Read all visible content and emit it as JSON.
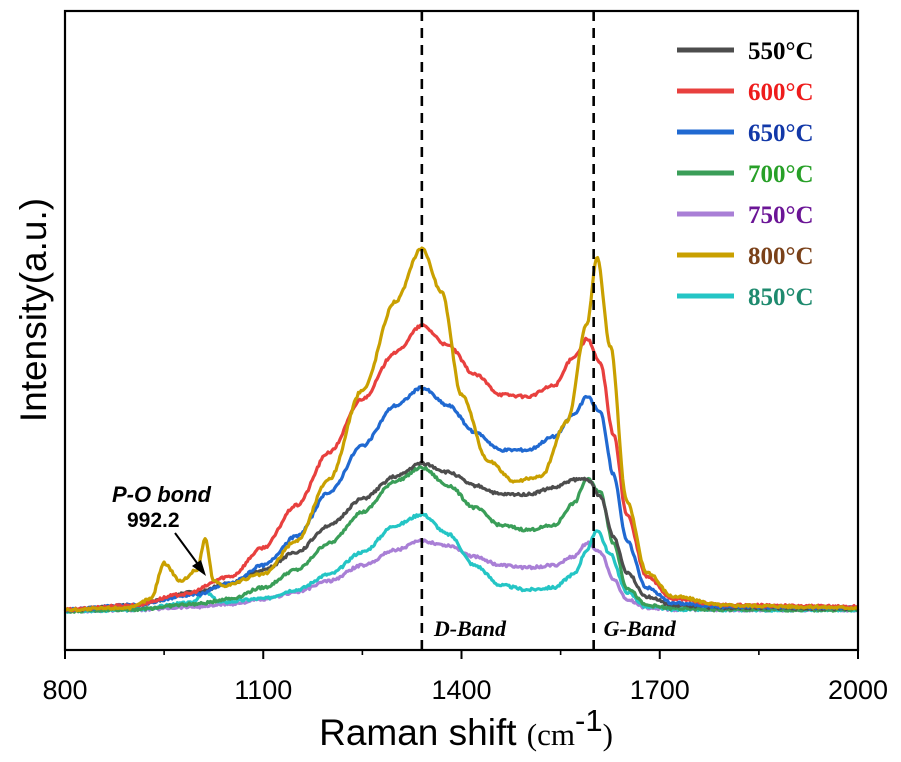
{
  "chart_data": {
    "type": "line",
    "xlabel": "Raman shift",
    "xlabel_unit": "(cm",
    "xlabel_unit_exp": "-1",
    "xlabel_unit_close": ")",
    "ylabel": "Intensity(a.u.)",
    "xlim": [
      800,
      2000
    ],
    "ylim": [
      0,
      10
    ],
    "x_ticks": [
      800,
      1100,
      1400,
      1700,
      2000
    ],
    "x_tick_labels": [
      "800",
      "1100",
      "1400",
      "1700",
      "2000"
    ],
    "grid": false,
    "legend_position": "top-right",
    "reference_lines": [
      {
        "x": 1340,
        "label": "D-Band"
      },
      {
        "x": 1600,
        "label": "G-Band"
      }
    ],
    "annotation": {
      "label": "P-O bond",
      "value": "992.2",
      "x": 1010,
      "y": 0.6
    },
    "series": [
      {
        "name": "550°C",
        "color": "#4d4d4d",
        "label_color": "#000000",
        "x": [
          800,
          900,
          1000,
          1050,
          1100,
          1150,
          1200,
          1250,
          1300,
          1340,
          1380,
          1420,
          1460,
          1500,
          1540,
          1570,
          1590,
          1610,
          1630,
          1650,
          1680,
          1720,
          1800,
          2000
        ],
        "y": [
          0.05,
          0.15,
          0.45,
          0.65,
          0.95,
          1.35,
          1.95,
          2.55,
          3.05,
          3.35,
          3.15,
          2.85,
          2.65,
          2.65,
          2.8,
          2.98,
          3.0,
          2.6,
          1.7,
          0.9,
          0.35,
          0.15,
          0.1,
          0.08
        ]
      },
      {
        "name": "600°C",
        "color": "#e8403e",
        "label_color": "#ee1c1c",
        "x": [
          800,
          900,
          980,
          1050,
          1100,
          1150,
          1200,
          1250,
          1300,
          1340,
          1380,
          1420,
          1460,
          1500,
          1540,
          1570,
          1590,
          1610,
          1630,
          1650,
          1680,
          1720,
          1800,
          2000
        ],
        "y": [
          0.05,
          0.15,
          0.4,
          0.8,
          1.45,
          2.4,
          3.6,
          4.8,
          5.85,
          6.45,
          6.0,
          5.35,
          4.9,
          4.85,
          5.1,
          5.75,
          6.15,
          5.6,
          4.0,
          2.2,
          0.8,
          0.3,
          0.15,
          0.12
        ]
      },
      {
        "name": "650°C",
        "color": "#2069d1",
        "label_color": "#1238a8",
        "x": [
          800,
          900,
          1000,
          1050,
          1100,
          1150,
          1200,
          1250,
          1300,
          1340,
          1380,
          1420,
          1460,
          1500,
          1540,
          1570,
          1590,
          1610,
          1630,
          1650,
          1680,
          1720,
          1800,
          2000
        ],
        "y": [
          0.05,
          0.15,
          0.4,
          0.65,
          1.05,
          1.7,
          2.7,
          3.75,
          4.65,
          5.05,
          4.65,
          4.05,
          3.65,
          3.65,
          3.95,
          4.45,
          4.85,
          4.5,
          3.1,
          1.6,
          0.55,
          0.2,
          0.12,
          0.1
        ]
      },
      {
        "name": "700°C",
        "color": "#3a9e58",
        "label_color": "#28a028",
        "x": [
          800,
          900,
          1000,
          1050,
          1100,
          1150,
          1200,
          1250,
          1300,
          1340,
          1380,
          1420,
          1460,
          1500,
          1540,
          1570,
          1590,
          1610,
          1630,
          1650,
          1680,
          1720,
          1800,
          2000
        ],
        "y": [
          0.02,
          0.06,
          0.18,
          0.3,
          0.55,
          0.95,
          1.55,
          2.25,
          2.95,
          3.25,
          2.85,
          2.35,
          1.95,
          1.85,
          1.95,
          2.45,
          3.0,
          2.7,
          1.55,
          0.55,
          0.15,
          0.08,
          0.05,
          0.05
        ]
      },
      {
        "name": "750°C",
        "color": "#a97fd6",
        "label_color": "#6b1596",
        "x": [
          800,
          900,
          1000,
          1050,
          1100,
          1150,
          1200,
          1250,
          1300,
          1340,
          1380,
          1420,
          1460,
          1500,
          1540,
          1570,
          1590,
          1610,
          1630,
          1650,
          1680,
          1720,
          1800,
          2000
        ],
        "y": [
          0.02,
          0.05,
          0.12,
          0.18,
          0.28,
          0.45,
          0.7,
          1.05,
          1.4,
          1.6,
          1.5,
          1.25,
          1.05,
          1.0,
          1.05,
          1.25,
          1.55,
          1.35,
          0.75,
          0.28,
          0.1,
          0.06,
          0.05,
          0.05
        ]
      },
      {
        "name": "800°C",
        "color": "#c9a000",
        "label_color": "#7a4119",
        "x": [
          800,
          900,
          930,
          950,
          975,
          1000,
          1012,
          1025,
          1040,
          1100,
          1150,
          1200,
          1250,
          1300,
          1340,
          1370,
          1400,
          1440,
          1480,
          1520,
          1560,
          1590,
          1605,
          1625,
          1650,
          1680,
          1720,
          1800,
          2000
        ],
        "y": [
          0.05,
          0.1,
          0.3,
          1.1,
          0.7,
          0.95,
          1.65,
          0.7,
          0.6,
          0.85,
          1.6,
          3.0,
          5.0,
          7.0,
          8.2,
          7.2,
          4.9,
          3.4,
          2.95,
          3.05,
          4.3,
          6.5,
          8.0,
          6.0,
          2.5,
          0.9,
          0.35,
          0.15,
          0.1
        ]
      },
      {
        "name": "850°C",
        "color": "#24c5c5",
        "label_color": "#1e8a6e",
        "x": [
          800,
          900,
          990,
          1012,
          1035,
          1100,
          1150,
          1200,
          1250,
          1300,
          1340,
          1380,
          1420,
          1460,
          1500,
          1540,
          1570,
          1590,
          1605,
          1625,
          1650,
          1680,
          1720,
          1800,
          2000
        ],
        "y": [
          0.02,
          0.05,
          0.2,
          0.45,
          0.22,
          0.3,
          0.5,
          0.85,
          1.35,
          1.95,
          2.2,
          1.75,
          1.05,
          0.6,
          0.5,
          0.55,
          0.85,
          1.4,
          1.85,
          1.3,
          0.45,
          0.12,
          0.06,
          0.05,
          0.05
        ]
      }
    ]
  }
}
